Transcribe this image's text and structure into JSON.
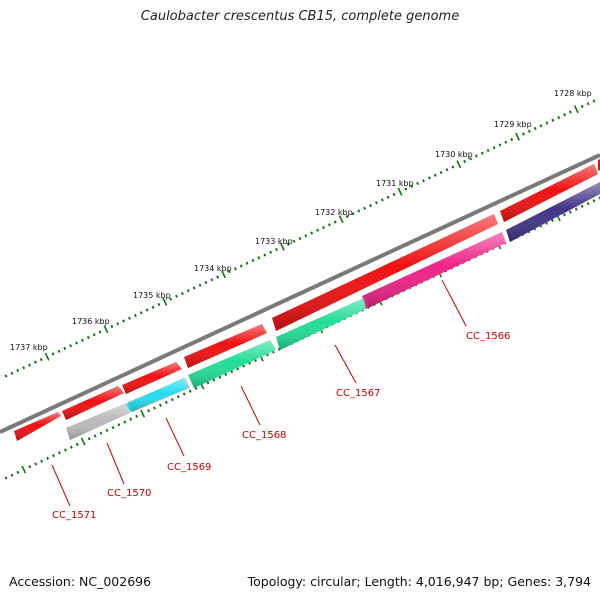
{
  "title": "Caulobacter crescentus CB15, complete genome",
  "footer": {
    "accession": "Accession: NC_002696",
    "stats": "Topology: circular; Length: 4,016,947 bp; Genes: 3,794"
  },
  "colors": {
    "backbone": "#777777",
    "outer_strand": "#ee1111",
    "label": "#cc0000",
    "tick": "#117711",
    "CC_1566": "#ee2288",
    "CC_1567": "#22dd99",
    "CC_1568": "#22dd99",
    "CC_1569": "#22ddee",
    "CC_1570": "#bbbbbb",
    "CC_1571": "#bbbbbb",
    "unnamed_inner": "#443388"
  },
  "kbp_labels": [
    "1728 kbp",
    "1729 kbp",
    "1730 kbp",
    "1731 kbp",
    "1732 kbp",
    "1733 kbp",
    "1734 kbp",
    "1735 kbp",
    "1736 kbp",
    "1737 kbp"
  ],
  "gene_labels": [
    "CC_1566",
    "CC_1567",
    "CC_1568",
    "CC_1569",
    "CC_1570",
    "CC_1571"
  ]
}
